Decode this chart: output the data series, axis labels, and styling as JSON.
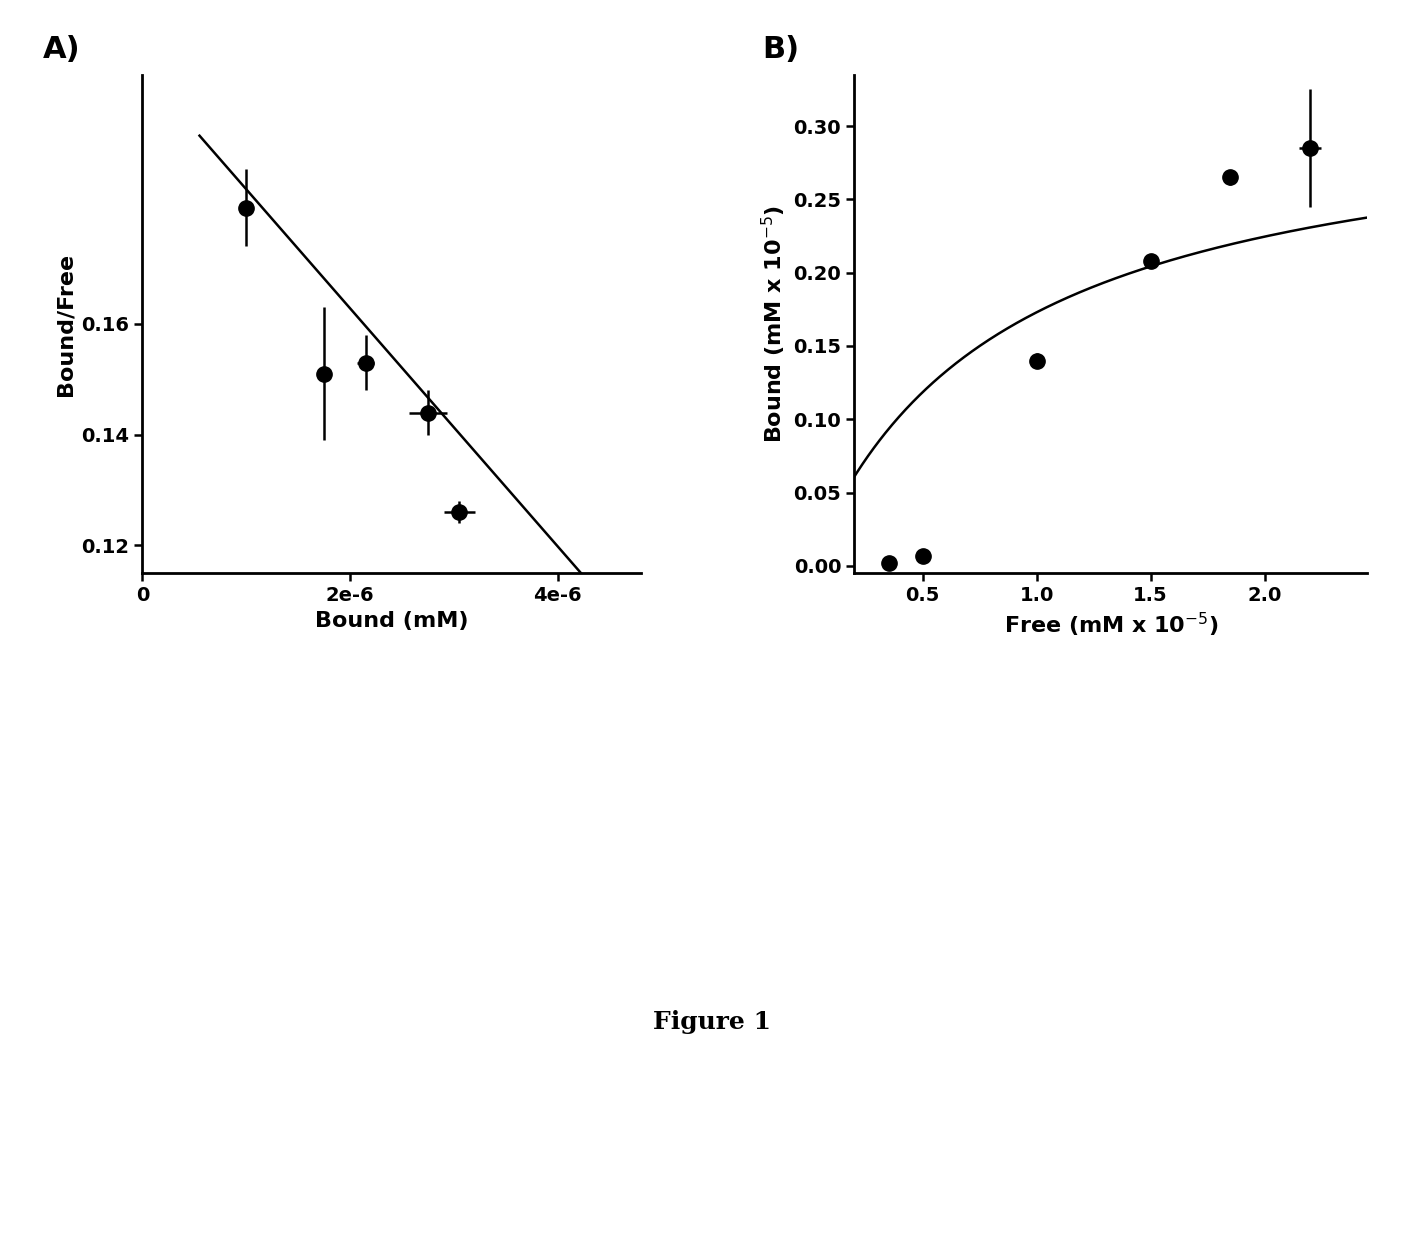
{
  "panel_A": {
    "xlabel": "Bound (mM)",
    "ylabel": "Bound/Free",
    "points_x": [
      1e-06,
      1.75e-06,
      2.15e-06,
      2.75e-06,
      3.05e-06
    ],
    "points_y": [
      0.181,
      0.151,
      0.153,
      0.144,
      0.126
    ],
    "xerr": [
      0.0,
      5e-08,
      8e-08,
      1.8e-07,
      1.5e-07
    ],
    "yerr": [
      0.007,
      0.012,
      0.005,
      0.004,
      0.002
    ],
    "line_x": [
      5.5e-07,
      4.55e-06
    ],
    "line_y": [
      0.194,
      0.108
    ],
    "xlim": [
      0,
      4.8e-06
    ],
    "ylim": [
      0.115,
      0.205
    ],
    "yticks": [
      0.12,
      0.14,
      0.16
    ],
    "xticks": [
      0,
      1e-06,
      2e-06,
      3e-06,
      4e-06
    ],
    "xtick_labels": [
      "0",
      "2e-6",
      "4e-6"
    ]
  },
  "panel_B": {
    "xlabel": "Free (mM x 10$^{-5}$)",
    "ylabel": "Bound (mM x 10$^{-5}$)",
    "points_x": [
      3.5e-06,
      5e-06,
      1e-05,
      1.5e-05,
      1.85e-05,
      2.2e-05
    ],
    "points_y": [
      2e-08,
      7e-08,
      1.4e-06,
      2.08e-06,
      2.65e-06,
      2.85e-06
    ],
    "xerr": [
      0.0,
      0.0,
      3e-07,
      0.0,
      3e-07,
      5e-07
    ],
    "yerr": [
      2e-08,
      3e-08,
      5e-08,
      3e-08,
      5e-08,
      4e-07
    ],
    "Bmax": 3.2e-06,
    "Kd": 8.5e-06,
    "xlim": [
      2e-06,
      2.45e-05
    ],
    "ylim": [
      -5e-08,
      3.35e-06
    ],
    "yticks_vals": [
      0.0,
      5e-07,
      1e-06,
      1.5e-06,
      2e-06,
      2.5e-06,
      3e-06
    ],
    "yticks_labels": [
      "0.00",
      "0.05",
      "0.10",
      "0.15",
      "0.20",
      "0.25",
      "0.30"
    ],
    "xticks_vals": [
      5e-06,
      1e-05,
      1.5e-05,
      2e-05
    ],
    "xticks_labels": [
      "0.5",
      "1.0",
      "1.5",
      "2.0"
    ]
  },
  "figure_label": "Figure 1",
  "background_color": "#ffffff",
  "marker_color": "#000000",
  "line_color": "#000000",
  "fontsize_labels": 16,
  "fontsize_ticks": 14,
  "fontsize_panel": 22,
  "fontsize_fig_label": 18
}
